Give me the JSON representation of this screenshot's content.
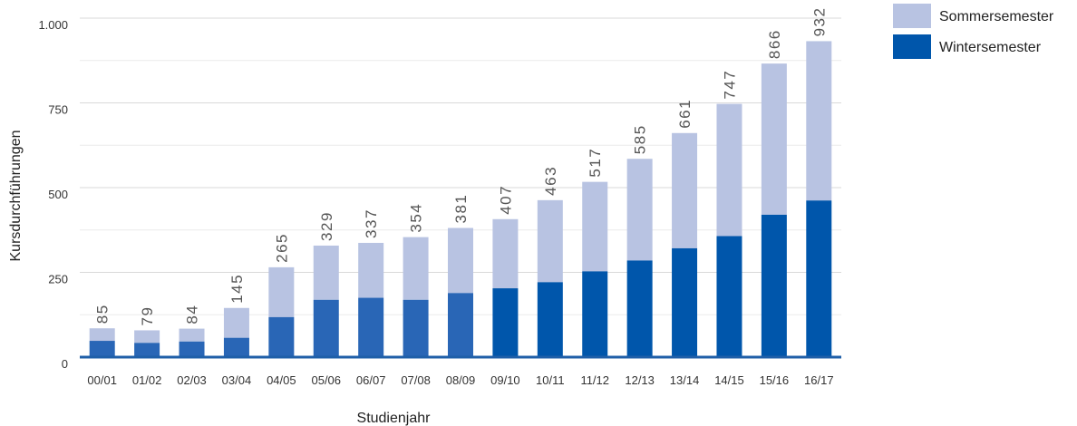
{
  "chart_data": {
    "type": "bar",
    "stacked": true,
    "xlabel": "Studienjahr",
    "ylabel": "Kursdurchführungen",
    "ylim": [
      0,
      1000
    ],
    "yticks": [
      0,
      250,
      500,
      750,
      1000
    ],
    "ytick_labels": [
      "0",
      "250",
      "500",
      "750",
      "1.000"
    ],
    "grid": true,
    "legend_position": "top-right",
    "categories": [
      "00/01",
      "01/02",
      "02/03",
      "03/04",
      "04/05",
      "05/06",
      "06/07",
      "07/08",
      "08/09",
      "09/10",
      "10/11",
      "11/12",
      "12/13",
      "13/14",
      "14/15",
      "15/16",
      "16/17"
    ],
    "series": [
      {
        "name": "Wintersemester",
        "color": "#2966b6",
        "color_late": "#0056ab",
        "values": [
          48,
          42,
          46,
          57,
          118,
          169,
          175,
          169,
          189,
          203,
          221,
          253,
          285,
          321,
          357,
          420,
          462
        ]
      },
      {
        "name": "Sommersemester",
        "color": "#b8c3e2",
        "values": [
          37,
          37,
          38,
          88,
          147,
          160,
          162,
          185,
          192,
          204,
          242,
          264,
          300,
          340,
          390,
          446,
          470
        ]
      }
    ],
    "totals": [
      85,
      79,
      84,
      145,
      265,
      329,
      337,
      354,
      381,
      407,
      463,
      517,
      585,
      661,
      747,
      866,
      932
    ]
  }
}
